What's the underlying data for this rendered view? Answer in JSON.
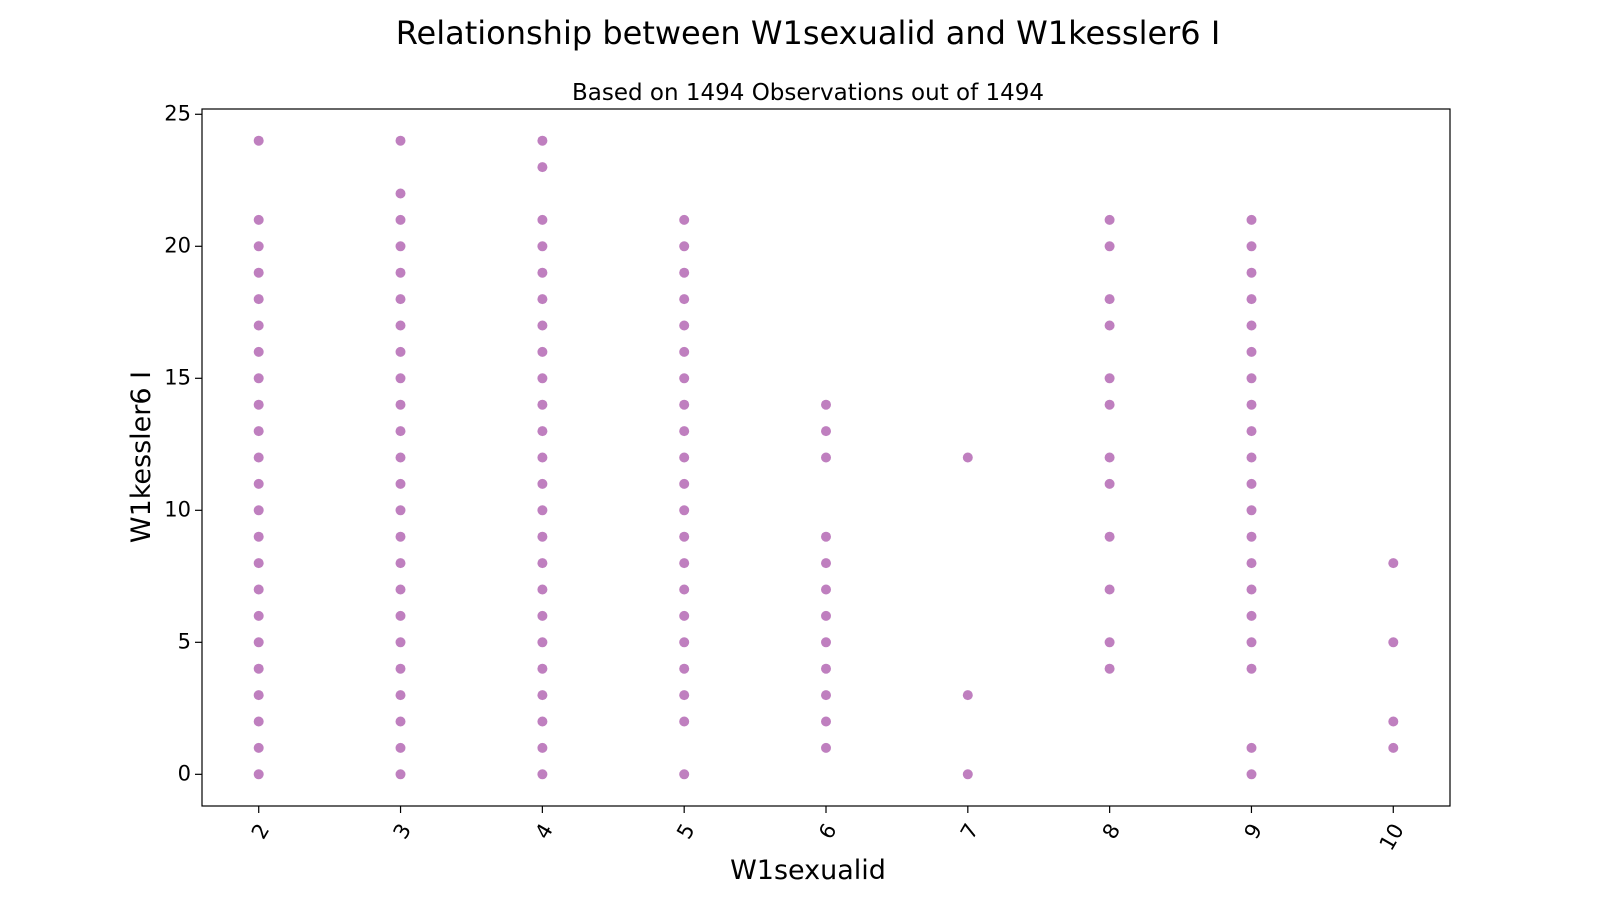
{
  "chart_data": {
    "type": "scatter",
    "title": "Relationship between W1sexualid and W1kessler6 I",
    "subtitle": "Based on 1494 Observations out of 1494",
    "xlabel": "W1sexualid",
    "ylabel": "W1kessler6 I",
    "x_ticks": [
      2,
      3,
      4,
      5,
      6,
      7,
      8,
      9,
      10
    ],
    "y_ticks": [
      0,
      5,
      10,
      15,
      20,
      25
    ],
    "xlim": [
      1.6,
      10.4
    ],
    "ylim": [
      -1.2,
      25.2
    ],
    "grid": false,
    "legend": "none",
    "marker_color": "#800080",
    "marker_opacity": 0.5,
    "series": [
      {
        "points": [
          {
            "x": 2,
            "y": [
              0,
              1,
              2,
              3,
              4,
              5,
              6,
              7,
              8,
              9,
              10,
              11,
              12,
              13,
              14,
              15,
              16,
              17,
              18,
              19,
              20,
              21,
              24
            ]
          },
          {
            "x": 3,
            "y": [
              0,
              1,
              2,
              3,
              4,
              5,
              6,
              7,
              8,
              9,
              10,
              11,
              12,
              13,
              14,
              15,
              16,
              17,
              18,
              19,
              20,
              21,
              22,
              24
            ]
          },
          {
            "x": 4,
            "y": [
              0,
              1,
              2,
              3,
              4,
              5,
              6,
              7,
              8,
              9,
              10,
              11,
              12,
              13,
              14,
              15,
              16,
              17,
              18,
              19,
              20,
              21,
              23,
              24
            ]
          },
          {
            "x": 5,
            "y": [
              0,
              2,
              3,
              4,
              5,
              6,
              7,
              8,
              9,
              10,
              11,
              12,
              13,
              14,
              15,
              16,
              17,
              18,
              19,
              20,
              21
            ]
          },
          {
            "x": 6,
            "y": [
              1,
              2,
              3,
              4,
              5,
              6,
              7,
              8,
              9,
              12,
              13,
              14
            ]
          },
          {
            "x": 7,
            "y": [
              0,
              3,
              12
            ]
          },
          {
            "x": 8,
            "y": [
              4,
              5,
              7,
              9,
              11,
              12,
              14,
              15,
              17,
              18,
              20,
              21
            ]
          },
          {
            "x": 9,
            "y": [
              0,
              1,
              4,
              5,
              6,
              7,
              8,
              9,
              10,
              11,
              12,
              13,
              14,
              15,
              16,
              17,
              18,
              19,
              20,
              21
            ]
          },
          {
            "x": 10,
            "y": [
              1,
              2,
              5,
              8
            ]
          }
        ]
      }
    ]
  }
}
